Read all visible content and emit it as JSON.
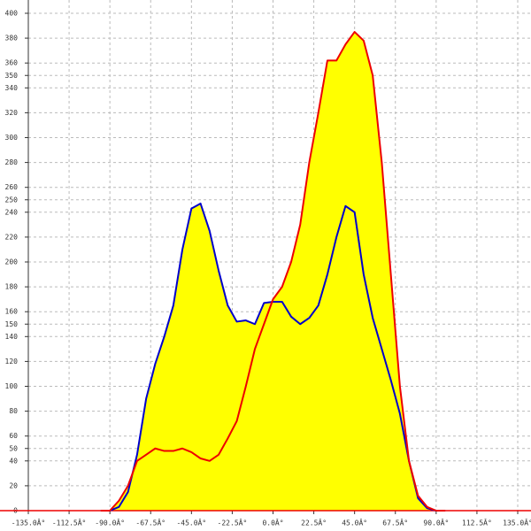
{
  "chart_data": {
    "type": "area-line",
    "x": [
      -95,
      -90,
      -85,
      -80,
      -75,
      -70,
      -65,
      -60,
      -55,
      -50,
      -45,
      -40,
      -35,
      -30,
      -25,
      -20,
      -15,
      -10,
      -5,
      0,
      5,
      10,
      15,
      20,
      25,
      30,
      35,
      40,
      45,
      50,
      55,
      60,
      65,
      70,
      75,
      80,
      85,
      90,
      95
    ],
    "series": [
      {
        "color": "#0000cc",
        "values": [
          0,
          0,
          3,
          15,
          45,
          90,
          118,
          140,
          165,
          210,
          243,
          247,
          225,
          193,
          165,
          152,
          153,
          150,
          167,
          168,
          168,
          156,
          150,
          155,
          165,
          190,
          220,
          245,
          240,
          190,
          155,
          130,
          105,
          78,
          40,
          10,
          2,
          0,
          0
        ]
      },
      {
        "color": "#ee0000",
        "values": [
          0,
          0,
          8,
          20,
          40,
          45,
          50,
          48,
          48,
          50,
          47,
          42,
          40,
          45,
          58,
          72,
          100,
          130,
          150,
          170,
          180,
          200,
          230,
          280,
          320,
          362,
          362,
          375,
          385,
          378,
          350,
          280,
          190,
          100,
          40,
          12,
          3,
          0,
          0
        ]
      }
    ],
    "area_color": "#ffff00",
    "xlim": [
      -135,
      135
    ],
    "xticks": [
      {
        "value": -135,
        "label": "-135.0Â°"
      },
      {
        "value": -112.5,
        "label": "-112.5Â°"
      },
      {
        "value": -90,
        "label": "-90.0Â°"
      },
      {
        "value": -67.5,
        "label": "-67.5Â°"
      },
      {
        "value": -45,
        "label": "-45.0Â°"
      },
      {
        "value": -22.5,
        "label": "-22.5Â°"
      },
      {
        "value": 0,
        "label": "0.0Â°"
      },
      {
        "value": 22.5,
        "label": "22.5Â°"
      },
      {
        "value": 45,
        "label": "45.0Â°"
      },
      {
        "value": 67.5,
        "label": "67.5Â°"
      },
      {
        "value": 90,
        "label": "90.0Â°"
      },
      {
        "value": 112.5,
        "label": "112.5Â°"
      },
      {
        "value": 135,
        "label": "135.0Â°"
      }
    ],
    "ylim": [
      0,
      400
    ],
    "yticks": [
      0,
      20,
      40,
      50,
      60,
      80,
      100,
      120,
      140,
      150,
      160,
      180,
      200,
      220,
      240,
      250,
      260,
      280,
      300,
      320,
      340,
      350,
      360,
      380,
      400
    ],
    "grid": true
  }
}
